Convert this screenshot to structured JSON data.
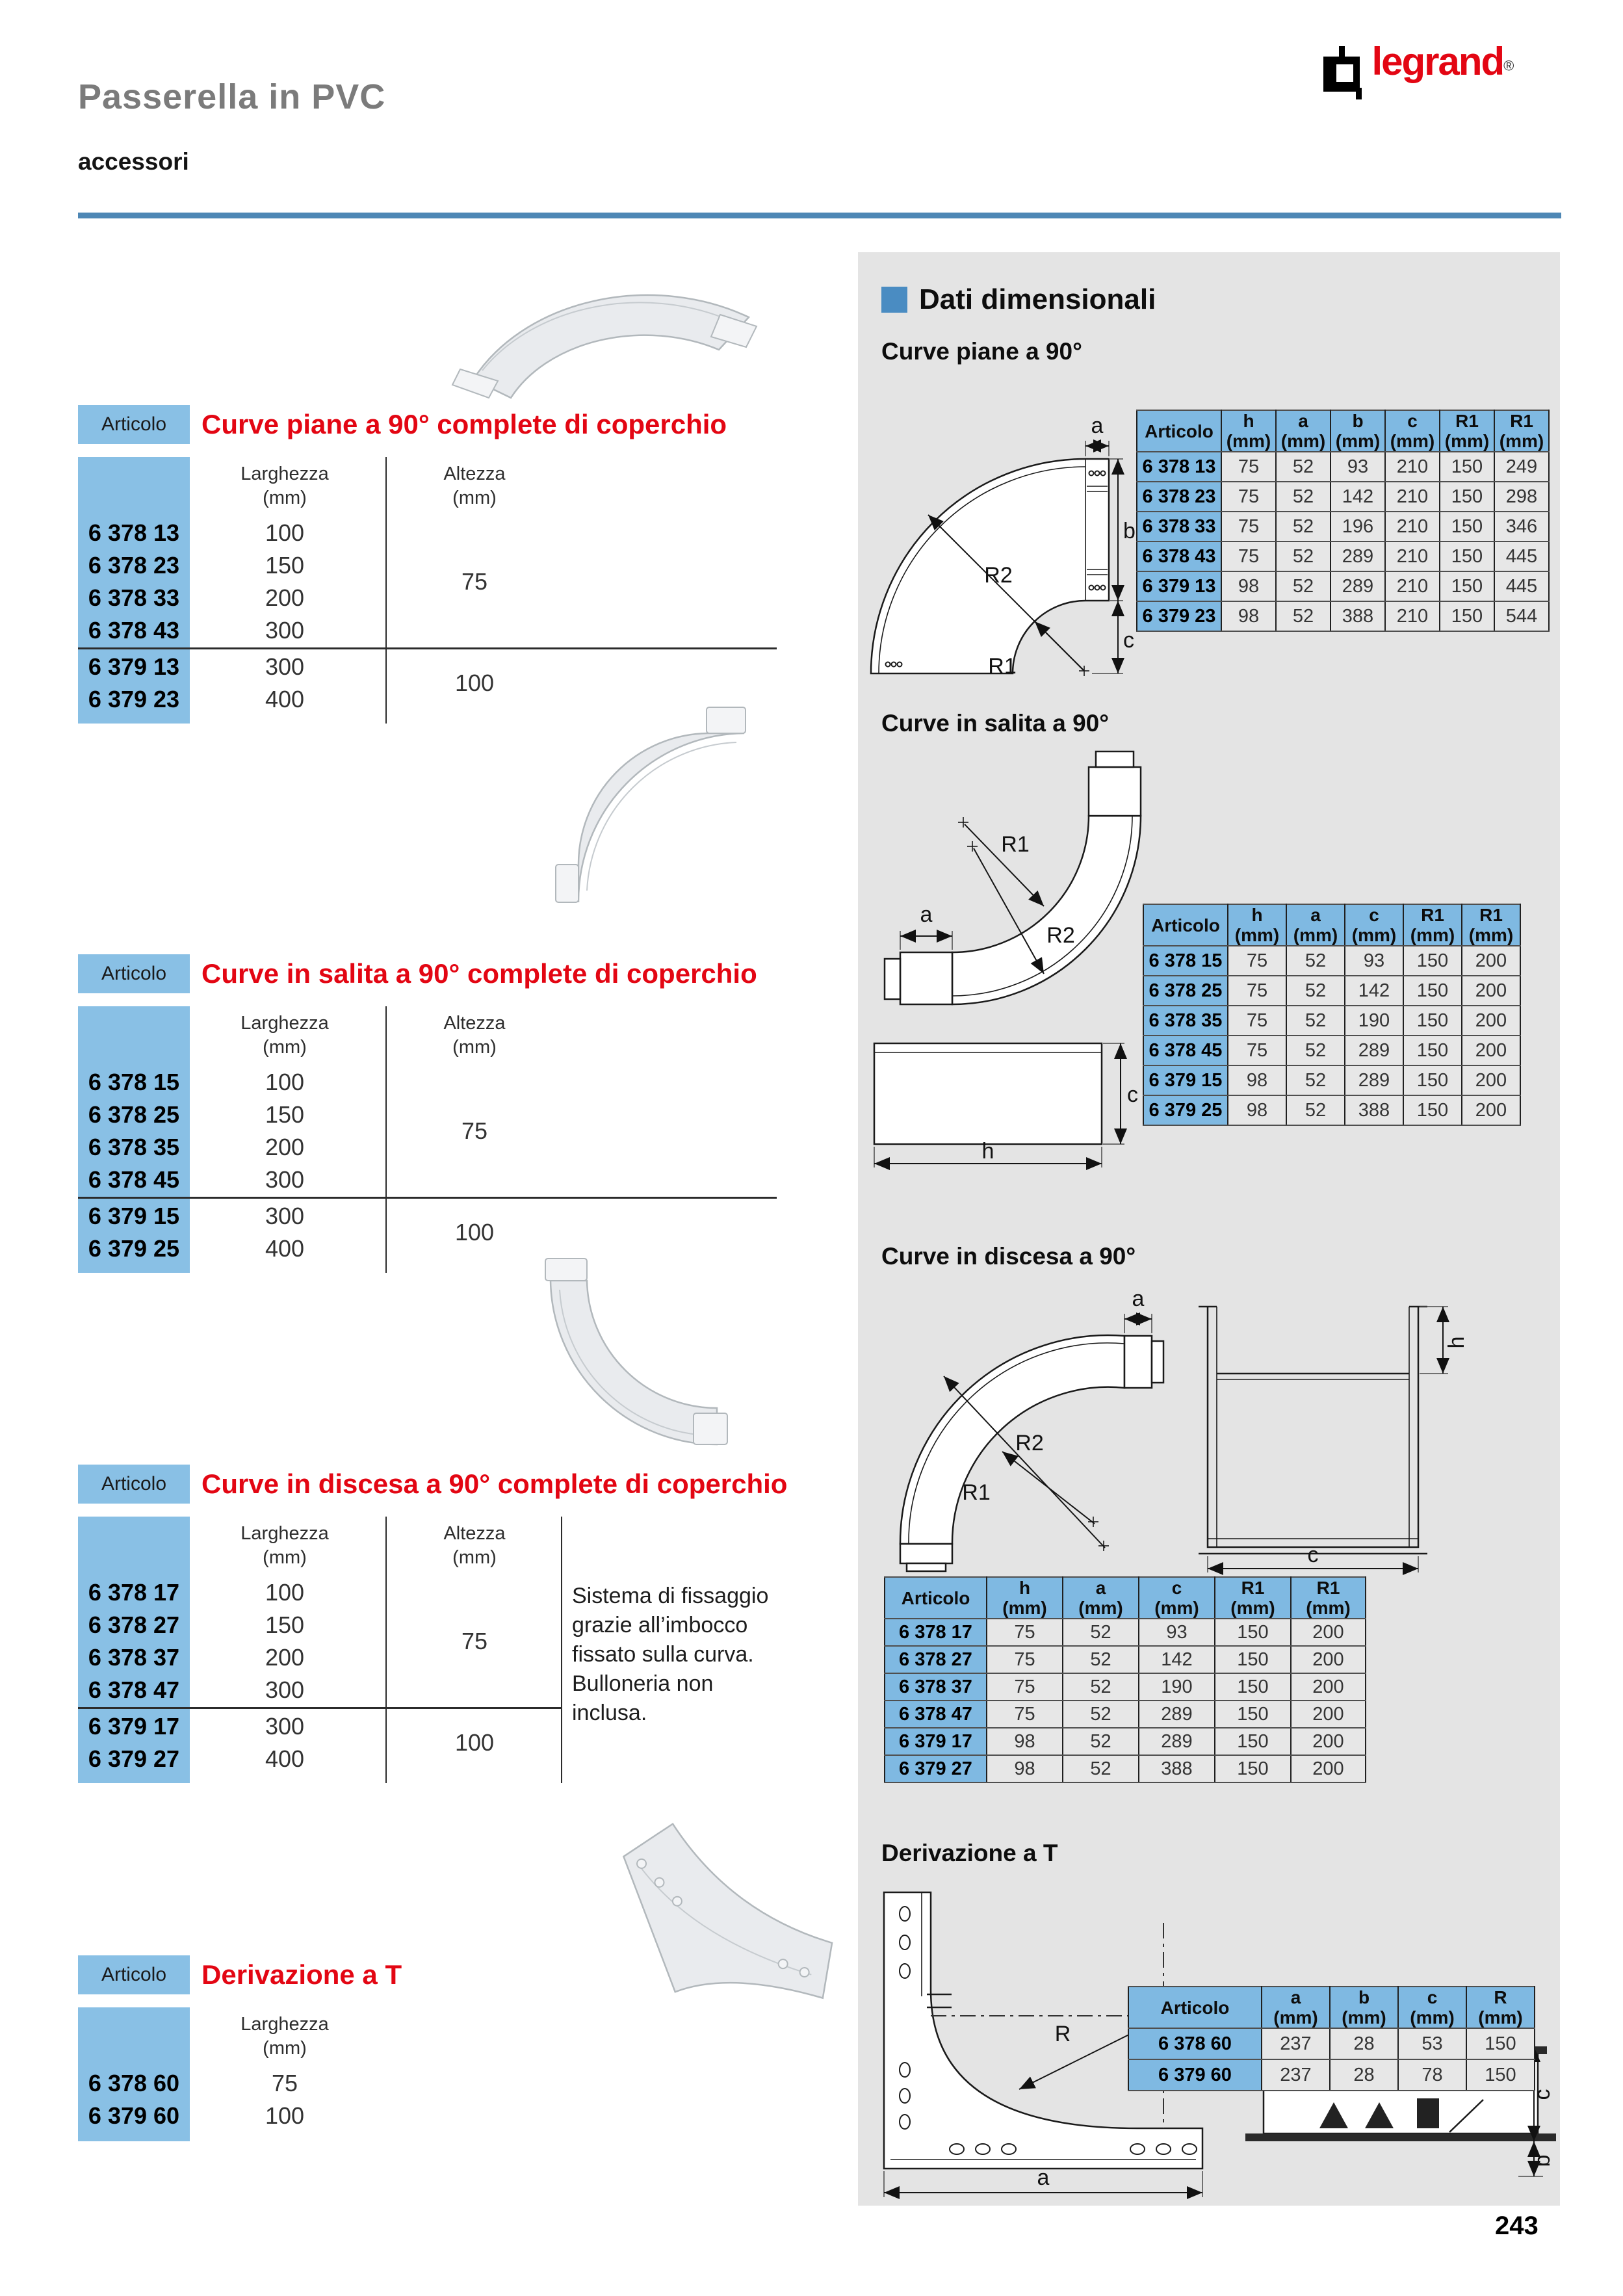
{
  "header": {
    "title": "Passerella in PVC",
    "subtitle": "accessori"
  },
  "logo": {
    "text": "legrand",
    "reg": "®"
  },
  "page_number": "243",
  "labels": {
    "a": "a",
    "b": "b",
    "c": "c",
    "h": "h",
    "r": "R",
    "r1": "R1",
    "r2": "R2"
  },
  "product_sections": [
    {
      "articolo_label": "Articolo",
      "title": "Curve piane a 90° complete di coperchio",
      "col_width_label": "Larghezza",
      "col_width_unit": "(mm)",
      "col_height_label": "Altezza",
      "col_height_unit": "(mm)",
      "groups": [
        {
          "altezza": "75",
          "rows": [
            [
              "6 378 13",
              "100"
            ],
            [
              "6 378 23",
              "150"
            ],
            [
              "6 378 33",
              "200"
            ],
            [
              "6 378 43",
              "300"
            ]
          ]
        },
        {
          "altezza": "100",
          "rows": [
            [
              "6 379 13",
              "300"
            ],
            [
              "6 379 23",
              "400"
            ]
          ]
        }
      ]
    },
    {
      "articolo_label": "Articolo",
      "title": "Curve in salita a 90° complete di coperchio",
      "col_width_label": "Larghezza",
      "col_width_unit": "(mm)",
      "col_height_label": "Altezza",
      "col_height_unit": "(mm)",
      "groups": [
        {
          "altezza": "75",
          "rows": [
            [
              "6 378 15",
              "100"
            ],
            [
              "6 378 25",
              "150"
            ],
            [
              "6 378 35",
              "200"
            ],
            [
              "6 378 45",
              "300"
            ]
          ]
        },
        {
          "altezza": "100",
          "rows": [
            [
              "6 379 15",
              "300"
            ],
            [
              "6 379 25",
              "400"
            ]
          ]
        }
      ]
    },
    {
      "articolo_label": "Articolo",
      "title": "Curve in discesa a 90° complete di coperchio",
      "col_width_label": "Larghezza",
      "col_width_unit": "(mm)",
      "col_height_label": "Altezza",
      "col_height_unit": "(mm)",
      "note": "Sistema di fissaggio grazie all’imbocco fissato sulla curva. Bulloneria non inclusa.",
      "groups": [
        {
          "altezza": "75",
          "rows": [
            [
              "6 378 17",
              "100"
            ],
            [
              "6 378 27",
              "150"
            ],
            [
              "6 378 37",
              "200"
            ],
            [
              "6 378 47",
              "300"
            ]
          ]
        },
        {
          "altezza": "100",
          "rows": [
            [
              "6 379 17",
              "300"
            ],
            [
              "6 379 27",
              "400"
            ]
          ]
        }
      ]
    },
    {
      "articolo_label": "Articolo",
      "title": "Derivazione a T",
      "col_width_label": "Larghezza",
      "col_width_unit": "(mm)",
      "groups": [
        {
          "rows": [
            [
              "6 378 60",
              "75"
            ],
            [
              "6 379 60",
              "100"
            ]
          ]
        }
      ]
    }
  ],
  "dimensional": {
    "heading": "Dati dimensionali",
    "sections": [
      {
        "title": "Curve piane a 90°",
        "headers": [
          [
            "Articolo",
            ""
          ],
          [
            "h",
            "(mm)"
          ],
          [
            "a",
            "(mm)"
          ],
          [
            "b",
            "(mm)"
          ],
          [
            "c",
            "(mm)"
          ],
          [
            "R1",
            "(mm)"
          ],
          [
            "R1",
            "(mm)"
          ]
        ],
        "rows": [
          [
            "6 378 13",
            "75",
            "52",
            "93",
            "210",
            "150",
            "249"
          ],
          [
            "6 378 23",
            "75",
            "52",
            "142",
            "210",
            "150",
            "298"
          ],
          [
            "6 378 33",
            "75",
            "52",
            "196",
            "210",
            "150",
            "346"
          ],
          [
            "6 378 43",
            "75",
            "52",
            "289",
            "210",
            "150",
            "445"
          ],
          [
            "6 379 13",
            "98",
            "52",
            "289",
            "210",
            "150",
            "445"
          ],
          [
            "6 379 23",
            "98",
            "52",
            "388",
            "210",
            "150",
            "544"
          ]
        ]
      },
      {
        "title": "Curve in salita a 90°",
        "headers": [
          [
            "Articolo",
            ""
          ],
          [
            "h",
            "(mm)"
          ],
          [
            "a",
            "(mm)"
          ],
          [
            "c",
            "(mm)"
          ],
          [
            "R1",
            "(mm)"
          ],
          [
            "R1",
            "(mm)"
          ]
        ],
        "rows": [
          [
            "6 378 15",
            "75",
            "52",
            "93",
            "150",
            "200"
          ],
          [
            "6 378 25",
            "75",
            "52",
            "142",
            "150",
            "200"
          ],
          [
            "6 378 35",
            "75",
            "52",
            "190",
            "150",
            "200"
          ],
          [
            "6 378 45",
            "75",
            "52",
            "289",
            "150",
            "200"
          ],
          [
            "6 379 15",
            "98",
            "52",
            "289",
            "150",
            "200"
          ],
          [
            "6 379 25",
            "98",
            "52",
            "388",
            "150",
            "200"
          ]
        ]
      },
      {
        "title": "Curve in discesa a 90°",
        "headers": [
          [
            "Articolo",
            ""
          ],
          [
            "h",
            "(mm)"
          ],
          [
            "a",
            "(mm)"
          ],
          [
            "c",
            "(mm)"
          ],
          [
            "R1",
            "(mm)"
          ],
          [
            "R1",
            "(mm)"
          ]
        ],
        "rows": [
          [
            "6 378 17",
            "75",
            "52",
            "93",
            "150",
            "200"
          ],
          [
            "6 378 27",
            "75",
            "52",
            "142",
            "150",
            "200"
          ],
          [
            "6 378 37",
            "75",
            "52",
            "190",
            "150",
            "200"
          ],
          [
            "6 378 47",
            "75",
            "52",
            "289",
            "150",
            "200"
          ],
          [
            "6 379 17",
            "98",
            "52",
            "289",
            "150",
            "200"
          ],
          [
            "6 379 27",
            "98",
            "52",
            "388",
            "150",
            "200"
          ]
        ]
      },
      {
        "title": "Derivazione a T",
        "headers": [
          [
            "Articolo",
            ""
          ],
          [
            "a",
            "(mm)"
          ],
          [
            "b",
            "(mm)"
          ],
          [
            "c",
            "(mm)"
          ],
          [
            "R",
            "(mm)"
          ]
        ],
        "rows": [
          [
            "6 378 60",
            "237",
            "28",
            "53",
            "150"
          ],
          [
            "6 379 60",
            "237",
            "28",
            "78",
            "150"
          ]
        ]
      }
    ]
  }
}
